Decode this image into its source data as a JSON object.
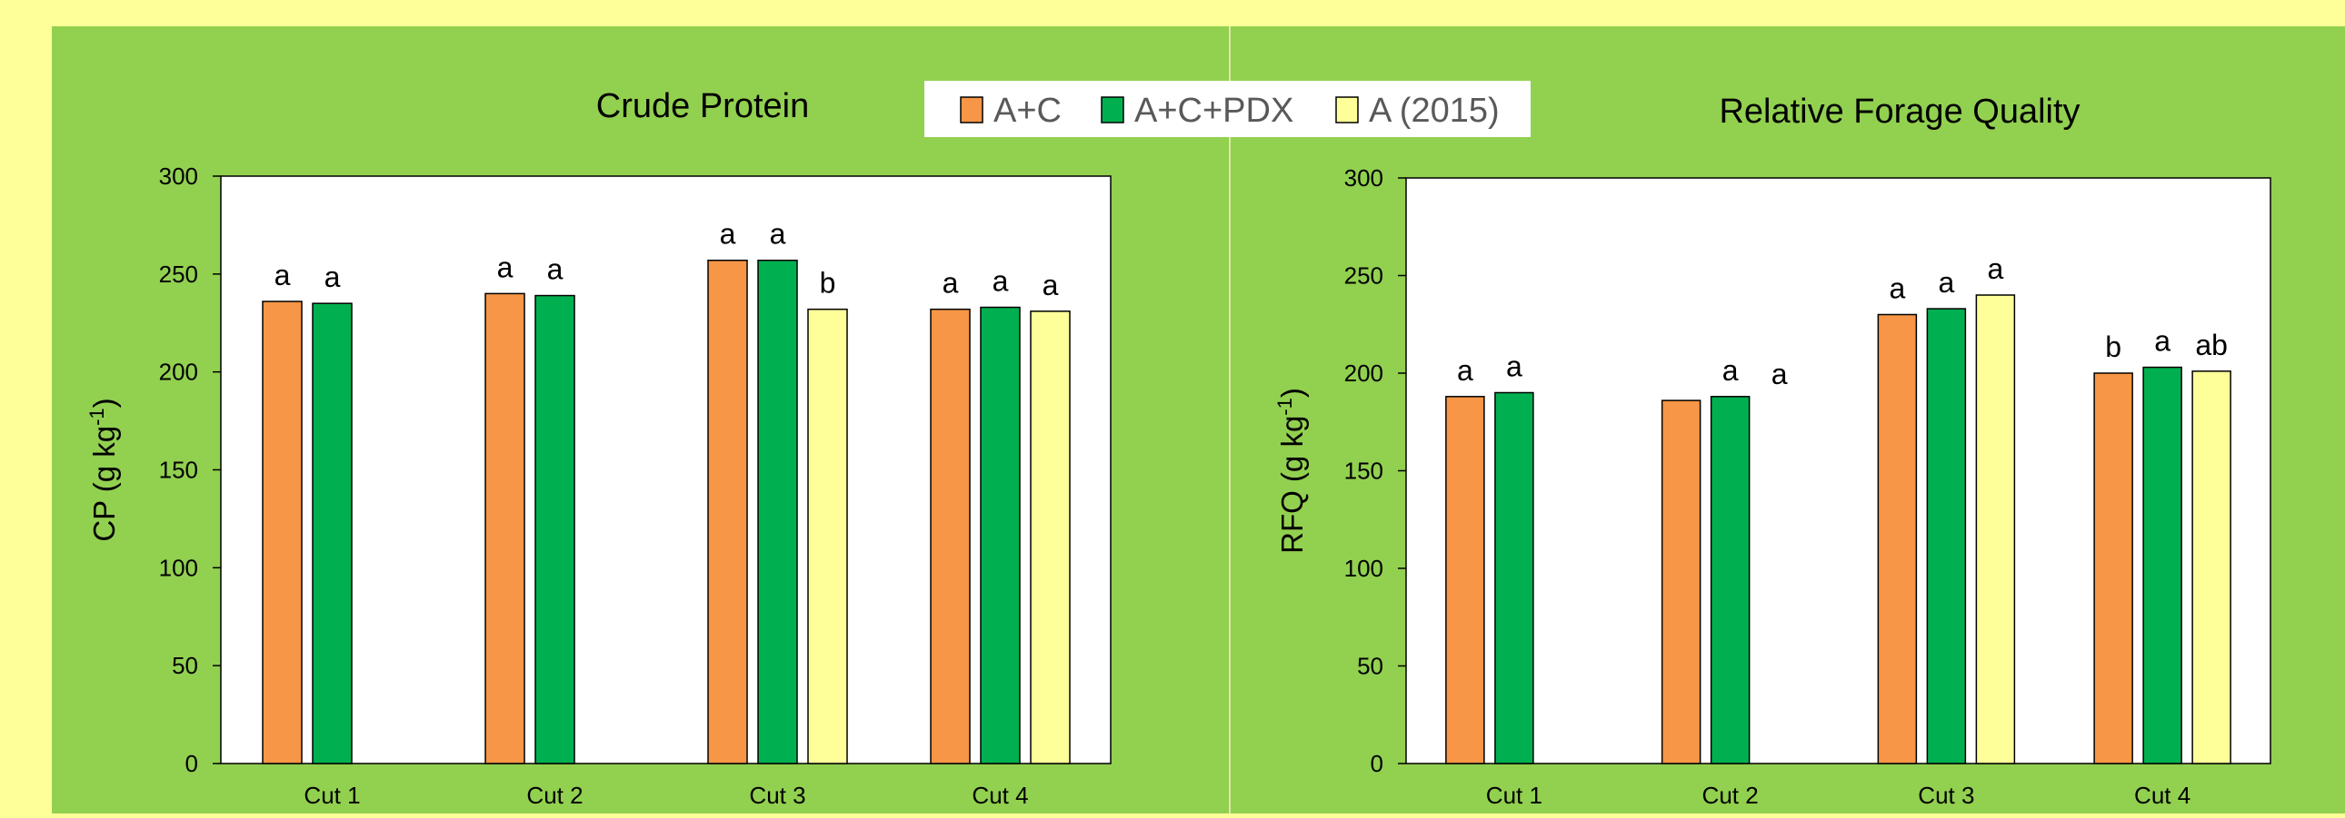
{
  "colors": {
    "page_background": "#ffff99",
    "panel_background": "#92d050",
    "plot_background": "#ffffff",
    "panel_divider": "#dbe9a6"
  },
  "legend": {
    "items": [
      {
        "label": "A+C",
        "color": "#f79646"
      },
      {
        "label": "A+C+PDX",
        "color": "#00b050"
      },
      {
        "label": "A (2015)",
        "color": "#ffff99"
      }
    ]
  },
  "chart_data": [
    {
      "type": "bar",
      "title": "Crude Protein",
      "ylabel": "CP (g kg",
      "ylabel_sup": "-1",
      "ylabel_close": ")",
      "ylim": [
        0,
        300
      ],
      "yticks": [
        "0",
        "50",
        "100",
        "150",
        "200",
        "250",
        "300"
      ],
      "categories": [
        "Cut 1",
        "Cut 2",
        "Cut 3",
        "Cut 4"
      ],
      "series": [
        {
          "name": "A+C",
          "color": "#f79646",
          "values": [
            236,
            240,
            257,
            232
          ],
          "letters": [
            "a",
            "a",
            "a",
            "a"
          ]
        },
        {
          "name": "A+C+PDX",
          "color": "#00b050",
          "values": [
            235,
            239,
            257,
            233
          ],
          "letters": [
            "a",
            "a",
            "a",
            "a"
          ]
        },
        {
          "name": "A (2015)",
          "color": "#ffff99",
          "values": [
            null,
            null,
            232,
            231
          ],
          "letters": [
            "",
            "",
            "b",
            "a"
          ]
        }
      ]
    },
    {
      "type": "bar",
      "title": "Relative  Forage Quality",
      "ylabel": "RFQ (g kg",
      "ylabel_sup": "-1",
      "ylabel_close": ")",
      "ylim": [
        0,
        300
      ],
      "yticks": [
        "0",
        "50",
        "100",
        "150",
        "200",
        "250",
        "300"
      ],
      "categories": [
        "Cut 1",
        "Cut 2",
        "Cut 3",
        "Cut 4"
      ],
      "series": [
        {
          "name": "A+C",
          "color": "#f79646",
          "values": [
            188,
            186,
            230,
            200
          ],
          "letters": [
            "a",
            "",
            "a",
            "b"
          ]
        },
        {
          "name": "A+C+PDX",
          "color": "#00b050",
          "values": [
            190,
            188,
            233,
            203
          ],
          "letters": [
            "a",
            "a",
            "a",
            "a"
          ]
        },
        {
          "name": "A (2015)",
          "color": "#ffff99",
          "values": [
            null,
            null,
            240,
            201
          ],
          "letters": [
            "",
            "a",
            "a",
            "ab"
          ]
        }
      ]
    }
  ]
}
